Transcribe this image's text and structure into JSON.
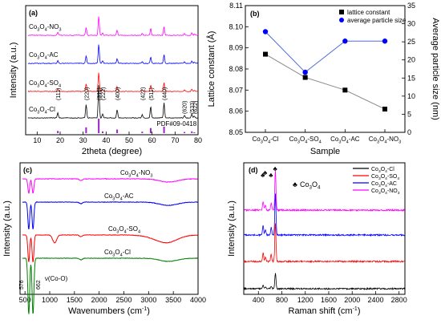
{
  "chart_data": [
    {
      "id": "a",
      "type": "line",
      "panel_label": "(a)",
      "xlabel": "2theta (degree)",
      "ylabel": "Intensity (a.u.)",
      "xlim": [
        5,
        80
      ],
      "xticks": [
        10,
        20,
        30,
        40,
        50,
        60,
        70,
        80
      ],
      "reference_label": "PDF#09-0418",
      "reference_color": "#9b22c4",
      "reference_peaks": [
        {
          "x": 19.0,
          "h": 0.15
        },
        {
          "x": 31.3,
          "h": 0.4
        },
        {
          "x": 36.8,
          "h": 1.0
        },
        {
          "x": 38.5,
          "h": 0.12
        },
        {
          "x": 44.8,
          "h": 0.25
        },
        {
          "x": 55.7,
          "h": 0.1
        },
        {
          "x": 59.4,
          "h": 0.35
        },
        {
          "x": 65.2,
          "h": 0.45
        },
        {
          "x": 74.1,
          "h": 0.08
        },
        {
          "x": 77.3,
          "h": 0.12
        },
        {
          "x": 78.4,
          "h": 0.06
        }
      ],
      "peak_labels": [
        {
          "x": 19.0,
          "label": "(111)"
        },
        {
          "x": 31.3,
          "label": "(220)"
        },
        {
          "x": 36.8,
          "label": "(311)"
        },
        {
          "x": 38.5,
          "label": "(222)"
        },
        {
          "x": 44.8,
          "label": "(400)"
        },
        {
          "x": 55.7,
          "label": "(422)"
        },
        {
          "x": 59.4,
          "label": "(511)"
        },
        {
          "x": 65.2,
          "label": "(440)"
        },
        {
          "x": 73.9,
          "label": "(620)"
        },
        {
          "x": 77.2,
          "label": "(533)"
        },
        {
          "x": 78.6,
          "label": "(622)"
        }
      ],
      "series": [
        {
          "base": "Co",
          "sub1": "3",
          "mid": "O",
          "sub2": "4",
          "suffix": "-NO",
          "sub3": "3",
          "color": "#ff00ff"
        },
        {
          "base": "Co",
          "sub1": "3",
          "mid": "O",
          "sub2": "4",
          "suffix": "-AC",
          "sub3": "",
          "color": "#0000ff"
        },
        {
          "base": "Co",
          "sub1": "3",
          "mid": "O",
          "sub2": "4",
          "suffix": "-SO",
          "sub3": "4",
          "color": "#ff0000"
        },
        {
          "base": "Co",
          "sub1": "3",
          "mid": "O",
          "sub2": "4",
          "suffix": "-Cl",
          "sub3": "",
          "color": "#000000"
        }
      ]
    },
    {
      "id": "b",
      "type": "line",
      "panel_label": "(b)",
      "xlabel": "Sample",
      "ylabel": "Lattice constant (Å)",
      "y2label": "Average particle size (nm)",
      "categories": [
        {
          "base": "Co",
          "sub1": "3",
          "mid": "O",
          "sub2": "4",
          "suffix": "-Cl",
          "sub3": ""
        },
        {
          "base": "Co",
          "sub1": "3",
          "mid": "O",
          "sub2": "4",
          "suffix": "-SO",
          "sub3": "4"
        },
        {
          "base": "Co",
          "sub1": "3",
          "mid": "O",
          "sub2": "4",
          "suffix": "-AC",
          "sub3": ""
        },
        {
          "base": "Co",
          "sub1": "3",
          "mid": "O",
          "sub2": "4",
          "suffix": "-NO",
          "sub3": "3"
        }
      ],
      "ylim": [
        8.05,
        8.11
      ],
      "yticks": [
        "8.05",
        "8.06",
        "8.07",
        "8.08",
        "8.09",
        "8.10",
        "8.11"
      ],
      "y2lim": [
        0,
        35
      ],
      "y2ticks": [
        "0",
        "5",
        "10",
        "15",
        "20",
        "25",
        "30",
        "35"
      ],
      "legend_position": "top-right",
      "series": [
        {
          "name": "lattice constant",
          "axis": "left",
          "marker": "square",
          "color": "#000000",
          "values": [
            8.087,
            8.076,
            8.07,
            8.061
          ]
        },
        {
          "name": "average particle size",
          "axis": "right",
          "marker": "circle",
          "color": "#0000ff",
          "values": [
            27.8,
            16.6,
            25.2,
            25.2
          ]
        }
      ]
    },
    {
      "id": "c",
      "type": "line",
      "panel_label": "(c)",
      "xlabel": "Wavenumbers (cm",
      "xlabel_sup": "-1",
      "xlabel_end": ")",
      "ylabel": "Intensity (a.u.)",
      "xlim": [
        400,
        4000
      ],
      "xticks": [
        500,
        1000,
        1500,
        2000,
        2500,
        3000,
        3500,
        4000
      ],
      "annotations": [
        {
          "x": 576,
          "text": "576"
        },
        {
          "x": 662,
          "text": "662"
        },
        {
          "x": 900,
          "text": "ν(Co-O)"
        }
      ],
      "series": [
        {
          "base": "Co",
          "sub1": "3",
          "mid": "O",
          "sub2": "4",
          "suffix": "-NO",
          "sub3": "3",
          "color": "#ff00ff"
        },
        {
          "base": "Co",
          "sub1": "3",
          "mid": "O",
          "sub2": "4",
          "suffix": "-AC",
          "sub3": "",
          "color": "#0000ff"
        },
        {
          "base": "Co",
          "sub1": "3",
          "mid": "O",
          "sub2": "4",
          "suffix": "-SO",
          "sub3": "4",
          "color": "#ff0000"
        },
        {
          "base": "Co",
          "sub1": "3",
          "mid": "O",
          "sub2": "4",
          "suffix": "-Cl",
          "sub3": "",
          "color": "#008000"
        }
      ]
    },
    {
      "id": "d",
      "type": "line",
      "panel_label": "(d)",
      "xlabel": "Raman shift (cm",
      "xlabel_sup": "-1",
      "xlabel_end": ")",
      "ylabel": "Intensity (a.u.)",
      "xlim": [
        150,
        2900
      ],
      "xticks": [
        400,
        800,
        1200,
        1600,
        2000,
        2400,
        2800
      ],
      "marker_symbol": "♣",
      "marker_label": {
        "base": "Co",
        "sub1": "3",
        "mid": "O",
        "sub2": "4"
      },
      "peak_markers": [
        480,
        520,
        618,
        690
      ],
      "legend_position": "top-right",
      "series": [
        {
          "base": "Co",
          "sub1": "3",
          "mid": "O",
          "sub2": "4",
          "suffix": "-Cl",
          "sub3": "",
          "color": "#000000"
        },
        {
          "base": "Co",
          "sub1": "3",
          "mid": "O",
          "sub2": "4",
          "suffix": "-SO",
          "sub3": "4",
          "color": "#ff0000"
        },
        {
          "base": "Co",
          "sub1": "3",
          "mid": "O",
          "sub2": "4",
          "suffix": "-AC",
          "sub3": "",
          "color": "#0000ff"
        },
        {
          "base": "Co",
          "sub1": "3",
          "mid": "O",
          "sub2": "4",
          "suffix": "-NO",
          "sub3": "3",
          "color": "#ff00ff"
        }
      ]
    }
  ]
}
